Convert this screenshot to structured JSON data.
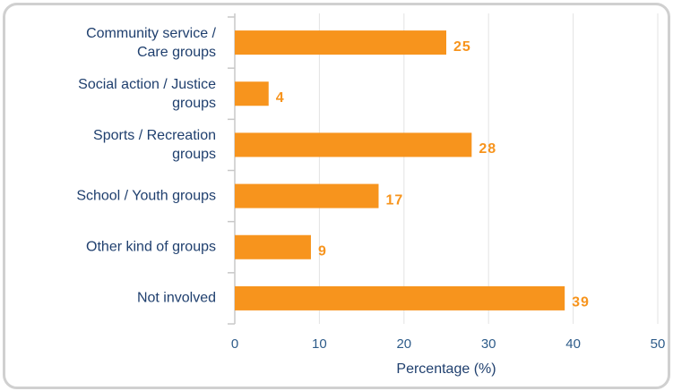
{
  "chart_data": {
    "type": "bar",
    "orientation": "horizontal",
    "categories": [
      "Community service /\nCare groups",
      "Social action / Justice\ngroups",
      "Sports / Recreation\ngroups",
      "School / Youth groups",
      "Other kind of groups",
      "Not involved"
    ],
    "values": [
      25,
      4,
      28,
      17,
      9,
      39
    ],
    "color": "#f7941d",
    "xlabel": "Percentage (%)",
    "xlim": [
      0,
      50
    ],
    "xticks": [
      0,
      10,
      20,
      30,
      40,
      50
    ],
    "grid": true
  }
}
